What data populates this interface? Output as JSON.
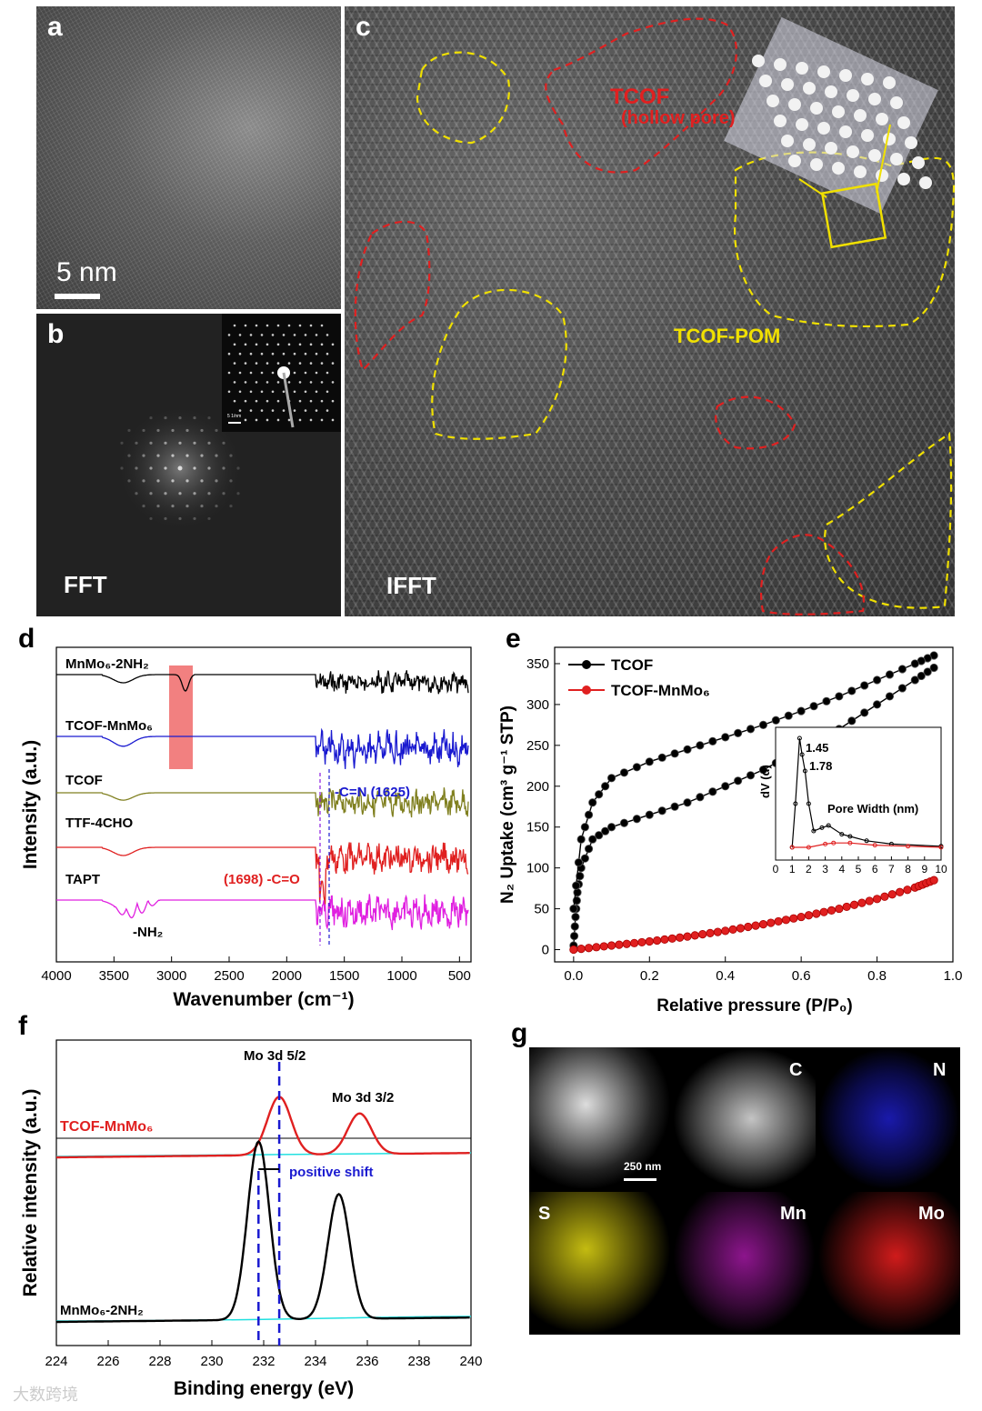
{
  "panels": {
    "a": {
      "letter": "a",
      "scalebar": "5 nm"
    },
    "b": {
      "letter": "b",
      "label": "FFT",
      "inset_scale": "5 1/nm"
    },
    "c": {
      "letter": "c",
      "label": "IFFT",
      "region_tcof": "TCOF",
      "region_tcof_sub": "(hollow pore)",
      "region_pom": "TCOF-POM"
    },
    "d": {
      "letter": "d"
    },
    "e": {
      "letter": "e"
    },
    "f": {
      "letter": "f"
    },
    "g": {
      "letter": "g",
      "scalebar": "250 nm",
      "maps": [
        "",
        "C",
        "N",
        "S",
        "Mn",
        "Mo"
      ]
    }
  },
  "colors": {
    "red": "#e02020",
    "blue": "#1a1ad0",
    "olive": "#808020",
    "magenta": "#e020e0",
    "yellow": "#f0e000",
    "cyan": "#20e0e0"
  },
  "watermark": "大数跨境",
  "chart_data": [
    {
      "panel": "d",
      "type": "line",
      "title": "",
      "xlabel": "Wavenumber (cm⁻¹)",
      "ylabel": "Intensity (a.u.)",
      "xlim": [
        4000,
        400
      ],
      "x_ticks": [
        "4000",
        "3500",
        "3000",
        "2500",
        "2000",
        "1500",
        "1000",
        "500"
      ],
      "series": [
        {
          "name": "MnMo6-2NH2",
          "label": "MnMo₆-2NH₂",
          "color": "#000000"
        },
        {
          "name": "TCOF-MnMo6",
          "label": "TCOF-MnMo₆",
          "color": "#1a1ad0"
        },
        {
          "name": "TCOF",
          "label": "TCOF",
          "color": "#808020"
        },
        {
          "name": "TTF-4CHO",
          "label": "TTF-4CHO",
          "color": "#e02020"
        },
        {
          "name": "TAPT",
          "label": "TAPT",
          "color": "#e020e0"
        }
      ],
      "annotations": [
        "-C=N (1625)",
        "(1698) -C=O",
        "-NH₂"
      ]
    },
    {
      "panel": "e",
      "type": "line",
      "xlabel": "Relative pressure (P/P₀)",
      "ylabel": "N₂ Uptake (cm³ g⁻¹ STP)",
      "xlim": [
        -0.05,
        1.0
      ],
      "ylim": [
        -15,
        370
      ],
      "x_ticks": [
        "0.0",
        "0.2",
        "0.4",
        "0.6",
        "0.8",
        "1.0"
      ],
      "y_ticks": [
        "0",
        "50",
        "100",
        "150",
        "200",
        "250",
        "300",
        "350"
      ],
      "series": [
        {
          "name": "TCOF",
          "color": "#000000",
          "adsorption": [
            [
              0.0,
              5
            ],
            [
              0.005,
              40
            ],
            [
              0.01,
              70
            ],
            [
              0.02,
              100
            ],
            [
              0.05,
              135
            ],
            [
              0.1,
              150
            ],
            [
              0.2,
              165
            ],
            [
              0.3,
              180
            ],
            [
              0.4,
              200
            ],
            [
              0.5,
              220
            ],
            [
              0.6,
              245
            ],
            [
              0.7,
              270
            ],
            [
              0.8,
              300
            ],
            [
              0.9,
              330
            ],
            [
              0.95,
              345
            ]
          ],
          "desorption": [
            [
              0.95,
              360
            ],
            [
              0.9,
              350
            ],
            [
              0.8,
              330
            ],
            [
              0.7,
              310
            ],
            [
              0.6,
              292
            ],
            [
              0.5,
              275
            ],
            [
              0.4,
              260
            ],
            [
              0.3,
              245
            ],
            [
              0.2,
              230
            ],
            [
              0.1,
              210
            ],
            [
              0.05,
              180
            ],
            [
              0.02,
              135
            ],
            [
              0.0,
              50
            ]
          ]
        },
        {
          "name": "TCOF-MnMo6",
          "label": "TCOF-MnMo₆",
          "color": "#e02020",
          "points": [
            [
              0.0,
              0
            ],
            [
              0.1,
              5
            ],
            [
              0.2,
              10
            ],
            [
              0.3,
              16
            ],
            [
              0.4,
              23
            ],
            [
              0.5,
              31
            ],
            [
              0.6,
              40
            ],
            [
              0.7,
              50
            ],
            [
              0.8,
              62
            ],
            [
              0.9,
              76
            ],
            [
              0.95,
              85
            ]
          ]
        }
      ],
      "inset": {
        "xlabel": "Pore Width (nm)",
        "ylabel": "dV (d)",
        "xlim": [
          0,
          10
        ],
        "x_ticks": [
          "0",
          "1",
          "2",
          "3",
          "4",
          "5",
          "6",
          "7",
          "8",
          "9",
          "10"
        ],
        "peaks": [
          "1.45",
          "1.78"
        ],
        "tcof": [
          [
            1.0,
            0.0
          ],
          [
            1.2,
            0.4
          ],
          [
            1.45,
            1.0
          ],
          [
            1.6,
            0.85
          ],
          [
            1.78,
            0.7
          ],
          [
            2.0,
            0.4
          ],
          [
            2.3,
            0.15
          ],
          [
            2.8,
            0.18
          ],
          [
            3.2,
            0.2
          ],
          [
            4.0,
            0.12
          ],
          [
            4.5,
            0.1
          ],
          [
            5.5,
            0.06
          ],
          [
            7.0,
            0.03
          ],
          [
            10.0,
            0.01
          ]
        ],
        "tcof_mnmo6": [
          [
            1.0,
            0.0
          ],
          [
            2.0,
            0.0
          ],
          [
            3.0,
            0.03
          ],
          [
            3.5,
            0.04
          ],
          [
            4.5,
            0.04
          ],
          [
            6.0,
            0.02
          ],
          [
            8.0,
            0.01
          ],
          [
            10.0,
            0.0
          ]
        ]
      }
    },
    {
      "panel": "f",
      "type": "line",
      "xlabel": "Binding energy (eV)",
      "ylabel": "Relative intensity (a.u.)",
      "xlim": [
        224,
        240
      ],
      "x_ticks": [
        "224",
        "226",
        "228",
        "230",
        "232",
        "234",
        "236",
        "238",
        "240"
      ],
      "series": [
        {
          "name": "TCOF-MnMo6",
          "label": "TCOF-MnMo₆",
          "color": "#e02020",
          "peaks_eV": [
            232.6,
            235.7
          ]
        },
        {
          "name": "MnMo6-2NH2",
          "label": "MnMo₆-2NH₂",
          "color": "#000000",
          "peaks_eV": [
            231.8,
            234.9
          ]
        }
      ],
      "annotations": [
        "Mo 3d 5/2",
        "Mo 3d 3/2",
        "positive shift"
      ],
      "reference_lines_eV": [
        231.8,
        232.6
      ]
    }
  ]
}
